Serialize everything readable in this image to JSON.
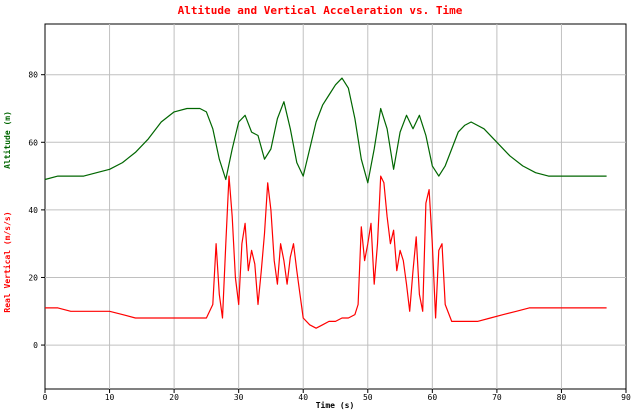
{
  "chart_data": {
    "type": "line",
    "title": "Altitude and Vertical Acceleration vs. Time",
    "xlabel": "Time (s)",
    "ylabel_top": "Altitude (m)",
    "ylabel_bottom": "Real Vertical (m/s/s)",
    "xlim": [
      0,
      90
    ],
    "ylim": [
      -13,
      95
    ],
    "grid": true,
    "x_ticks": [
      0,
      10,
      20,
      30,
      40,
      50,
      60,
      70,
      80,
      90
    ],
    "y_ticks": [
      0,
      20,
      40,
      60,
      80
    ],
    "series": [
      {
        "name": "Altitude (m)",
        "color": "#006600",
        "points": [
          [
            0,
            49
          ],
          [
            2,
            50
          ],
          [
            4,
            50
          ],
          [
            6,
            50
          ],
          [
            8,
            51
          ],
          [
            10,
            52
          ],
          [
            12,
            54
          ],
          [
            14,
            57
          ],
          [
            16,
            61
          ],
          [
            18,
            66
          ],
          [
            20,
            69
          ],
          [
            22,
            70
          ],
          [
            24,
            70
          ],
          [
            25,
            69
          ],
          [
            26,
            64
          ],
          [
            27,
            55
          ],
          [
            28,
            49
          ],
          [
            29,
            58
          ],
          [
            30,
            66
          ],
          [
            31,
            68
          ],
          [
            32,
            63
          ],
          [
            33,
            62
          ],
          [
            34,
            55
          ],
          [
            35,
            58
          ],
          [
            36,
            67
          ],
          [
            37,
            72
          ],
          [
            38,
            64
          ],
          [
            39,
            54
          ],
          [
            40,
            50
          ],
          [
            41,
            58
          ],
          [
            42,
            66
          ],
          [
            43,
            71
          ],
          [
            44,
            74
          ],
          [
            45,
            77
          ],
          [
            46,
            79
          ],
          [
            47,
            76
          ],
          [
            48,
            67
          ],
          [
            49,
            55
          ],
          [
            50,
            48
          ],
          [
            51,
            58
          ],
          [
            52,
            70
          ],
          [
            53,
            64
          ],
          [
            54,
            52
          ],
          [
            55,
            63
          ],
          [
            56,
            68
          ],
          [
            57,
            64
          ],
          [
            58,
            68
          ],
          [
            59,
            62
          ],
          [
            60,
            53
          ],
          [
            61,
            50
          ],
          [
            62,
            53
          ],
          [
            63,
            58
          ],
          [
            64,
            63
          ],
          [
            65,
            65
          ],
          [
            66,
            66
          ],
          [
            68,
            64
          ],
          [
            70,
            60
          ],
          [
            72,
            56
          ],
          [
            74,
            53
          ],
          [
            76,
            51
          ],
          [
            78,
            50
          ],
          [
            80,
            50
          ],
          [
            82,
            50
          ],
          [
            84,
            50
          ],
          [
            86,
            50
          ],
          [
            87,
            50
          ]
        ]
      },
      {
        "name": "Real Vertical (m/s/s)",
        "color": "#ff0000",
        "points": [
          [
            0,
            11
          ],
          [
            2,
            11
          ],
          [
            4,
            10
          ],
          [
            6,
            10
          ],
          [
            8,
            10
          ],
          [
            10,
            10
          ],
          [
            12,
            9
          ],
          [
            14,
            8
          ],
          [
            16,
            8
          ],
          [
            18,
            8
          ],
          [
            20,
            8
          ],
          [
            22,
            8
          ],
          [
            24,
            8
          ],
          [
            25,
            8
          ],
          [
            26,
            12
          ],
          [
            26.5,
            30
          ],
          [
            27,
            15
          ],
          [
            27.5,
            8
          ],
          [
            28,
            30
          ],
          [
            28.5,
            50
          ],
          [
            29,
            38
          ],
          [
            29.5,
            20
          ],
          [
            30,
            12
          ],
          [
            30.5,
            30
          ],
          [
            31,
            36
          ],
          [
            31.5,
            22
          ],
          [
            32,
            28
          ],
          [
            32.5,
            24
          ],
          [
            33,
            12
          ],
          [
            33.5,
            22
          ],
          [
            34,
            33
          ],
          [
            34.5,
            48
          ],
          [
            35,
            40
          ],
          [
            35.5,
            25
          ],
          [
            36,
            18
          ],
          [
            36.5,
            30
          ],
          [
            37,
            25
          ],
          [
            37.5,
            18
          ],
          [
            38,
            26
          ],
          [
            38.5,
            30
          ],
          [
            39,
            22
          ],
          [
            39.5,
            15
          ],
          [
            40,
            8
          ],
          [
            41,
            6
          ],
          [
            42,
            5
          ],
          [
            43,
            6
          ],
          [
            44,
            7
          ],
          [
            45,
            7
          ],
          [
            46,
            8
          ],
          [
            47,
            8
          ],
          [
            48,
            9
          ],
          [
            48.5,
            12
          ],
          [
            49,
            35
          ],
          [
            49.5,
            25
          ],
          [
            50,
            30
          ],
          [
            50.5,
            36
          ],
          [
            51,
            18
          ],
          [
            51.5,
            30
          ],
          [
            52,
            50
          ],
          [
            52.5,
            48
          ],
          [
            53,
            38
          ],
          [
            53.5,
            30
          ],
          [
            54,
            34
          ],
          [
            54.5,
            22
          ],
          [
            55,
            28
          ],
          [
            55.5,
            25
          ],
          [
            56,
            18
          ],
          [
            56.5,
            10
          ],
          [
            57,
            22
          ],
          [
            57.5,
            32
          ],
          [
            58,
            15
          ],
          [
            58.5,
            10
          ],
          [
            59,
            42
          ],
          [
            59.5,
            46
          ],
          [
            60,
            30
          ],
          [
            60.5,
            8
          ],
          [
            61,
            28
          ],
          [
            61.5,
            30
          ],
          [
            62,
            12
          ],
          [
            63,
            7
          ],
          [
            65,
            7
          ],
          [
            67,
            7
          ],
          [
            69,
            8
          ],
          [
            71,
            9
          ],
          [
            73,
            10
          ],
          [
            75,
            11
          ],
          [
            77,
            11
          ],
          [
            79,
            11
          ],
          [
            81,
            11
          ],
          [
            83,
            11
          ],
          [
            85,
            11
          ],
          [
            87,
            11
          ]
        ]
      }
    ]
  }
}
